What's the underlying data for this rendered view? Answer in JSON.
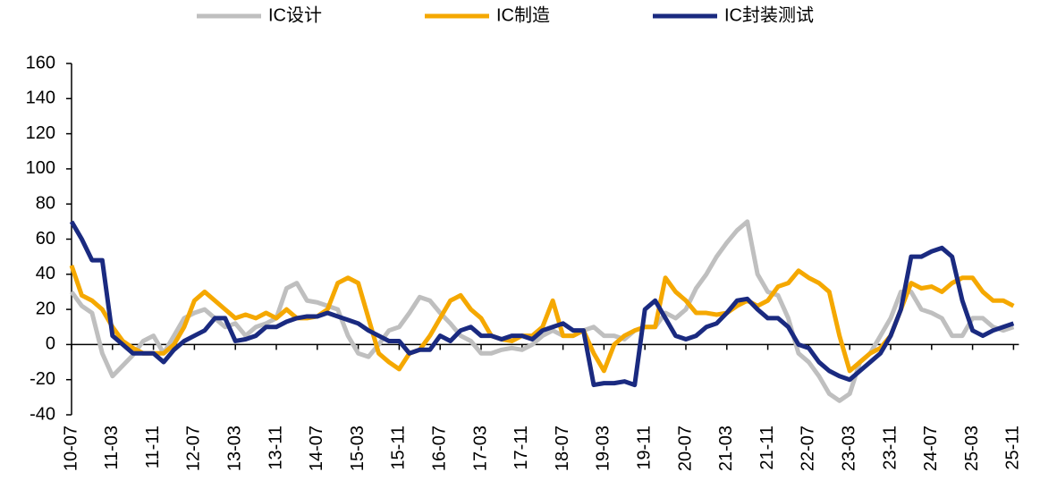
{
  "chart_data": {
    "type": "line",
    "categories": [
      "10-07",
      null,
      null,
      null,
      "11-03",
      null,
      null,
      null,
      "11-11",
      null,
      null,
      null,
      "12-07",
      null,
      null,
      null,
      "13-03",
      null,
      null,
      null,
      "13-11",
      null,
      null,
      null,
      "14-07",
      null,
      null,
      null,
      "15-03",
      null,
      null,
      null,
      "15-11",
      null,
      null,
      null,
      "16-07",
      null,
      null,
      null,
      "17-03",
      null,
      null,
      null,
      "17-11",
      null,
      null,
      null,
      "18-07",
      null,
      null,
      null,
      "19-03",
      null,
      null,
      null,
      "19-11",
      null,
      null,
      null,
      "20-07",
      null,
      null,
      null,
      "21-03",
      null,
      null,
      null,
      "21-11",
      null,
      null,
      null,
      "22-07",
      null,
      null,
      null,
      "23-03",
      null,
      null,
      null,
      "23-11",
      null,
      null,
      null,
      "24-07",
      null,
      null,
      null,
      "25-03",
      null,
      null,
      null,
      "25-11"
    ],
    "series": [
      {
        "name": "IC设计",
        "color": "#bfbfbf",
        "values": [
          30,
          22,
          18,
          -5,
          -18,
          -12,
          -6,
          2,
          5,
          -5,
          5,
          15,
          18,
          20,
          15,
          10,
          12,
          5,
          10,
          12,
          15,
          32,
          35,
          25,
          24,
          22,
          20,
          5,
          -5,
          -7,
          0,
          8,
          10,
          18,
          27,
          25,
          18,
          12,
          5,
          2,
          -5,
          -5,
          -3,
          -2,
          -3,
          0,
          5,
          8,
          5,
          5,
          8,
          10,
          5,
          5,
          3,
          8,
          10,
          10,
          18,
          15,
          20,
          32,
          40,
          50,
          58,
          65,
          70,
          40,
          30,
          28,
          15,
          -5,
          -10,
          -18,
          -28,
          -32,
          -28,
          -10,
          -5,
          5,
          15,
          30,
          30,
          20,
          18,
          15,
          5,
          5,
          15,
          15,
          10,
          8,
          10
        ]
      },
      {
        "name": "IC制造",
        "color": "#f5a800",
        "values": [
          45,
          28,
          25,
          20,
          10,
          2,
          -2,
          -5,
          -5,
          -5,
          0,
          10,
          25,
          30,
          25,
          20,
          15,
          17,
          15,
          18,
          15,
          20,
          15,
          15,
          16,
          20,
          35,
          38,
          35,
          15,
          -5,
          -10,
          -14,
          -5,
          -3,
          5,
          15,
          25,
          28,
          20,
          15,
          5,
          3,
          2,
          5,
          5,
          10,
          25,
          5,
          5,
          8,
          -5,
          -15,
          0,
          5,
          8,
          10,
          10,
          38,
          30,
          25,
          18,
          18,
          17,
          18,
          22,
          25,
          22,
          25,
          33,
          35,
          42,
          38,
          35,
          30,
          5,
          -15,
          -10,
          -5,
          -2,
          5,
          20,
          35,
          32,
          33,
          30,
          35,
          38,
          38,
          30,
          25,
          25,
          22
        ]
      },
      {
        "name": "IC封装测试",
        "color": "#1a2a80",
        "values": [
          70,
          60,
          48,
          48,
          5,
          0,
          -5,
          -5,
          -5,
          -10,
          -3,
          2,
          5,
          8,
          15,
          15,
          2,
          3,
          5,
          10,
          10,
          13,
          15,
          16,
          16,
          18,
          16,
          14,
          12,
          8,
          5,
          2,
          2,
          -5,
          -3,
          -3,
          5,
          2,
          8,
          10,
          5,
          5,
          3,
          5,
          5,
          3,
          8,
          10,
          12,
          8,
          8,
          -23,
          -22,
          -22,
          -21,
          -23,
          20,
          25,
          15,
          5,
          3,
          5,
          10,
          12,
          18,
          25,
          26,
          20,
          15,
          15,
          10,
          0,
          -2,
          -10,
          -15,
          -18,
          -20,
          -15,
          -10,
          -5,
          5,
          20,
          50,
          50,
          53,
          55,
          50,
          25,
          8,
          5,
          8,
          10,
          12
        ]
      }
    ],
    "ylim": [
      -40,
      160
    ],
    "yticks": [
      -40,
      -20,
      0,
      20,
      40,
      60,
      80,
      100,
      120,
      140,
      160
    ],
    "grid": false,
    "legend": "top"
  }
}
